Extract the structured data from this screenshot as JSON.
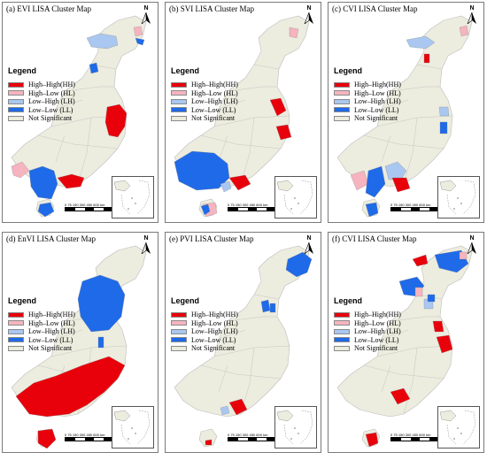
{
  "legend": {
    "title": "Legend",
    "items": [
      {
        "label": "High–High(HH)",
        "color": "#e8000b"
      },
      {
        "label": "High–Low (HL)",
        "color": "#f5b4bf"
      },
      {
        "label": "Low–High (LH)",
        "color": "#a9c7f0"
      },
      {
        "label": "Low–Low (LL)",
        "color": "#1f6ae8"
      },
      {
        "label": "Not Significant",
        "color": "#ececdf"
      }
    ]
  },
  "north_label": "N",
  "scale_ticks": "0  75 150    300    450    600",
  "scale_unit": "km",
  "panels": [
    {
      "title": "(a) EVI LISA Cluster Map"
    },
    {
      "title": "(b) SVI LISA Cluster Map"
    },
    {
      "title": "(c) CVI LISA Cluster Map"
    },
    {
      "title": "(d) EnVI LISA Cluster Map"
    },
    {
      "title": "(e) PVI LISA Cluster Map"
    },
    {
      "title": "(f) CVI LISA Cluster Map"
    }
  ],
  "colors": {
    "background_region": "#ececdf",
    "border": "#bdbdbd"
  }
}
